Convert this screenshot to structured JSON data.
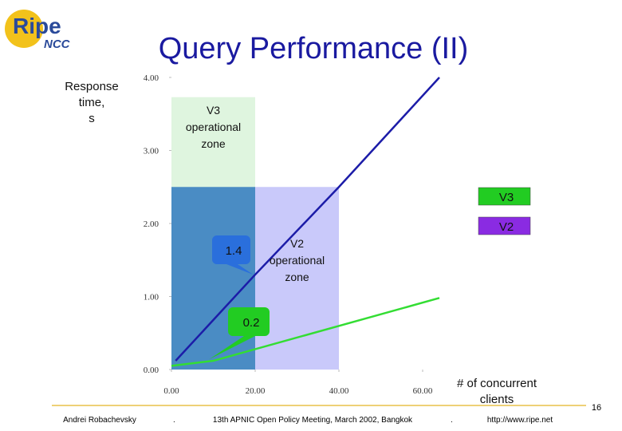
{
  "header": {
    "logo_main": "Ripe",
    "logo_sub": "NCC",
    "title": "Query Performance (II)"
  },
  "chart_data": {
    "type": "line",
    "y_label_lines": [
      "Response",
      "time,",
      "s"
    ],
    "x_label_lines": [
      "# of concurrent",
      "clients"
    ],
    "xlim": [
      0,
      65
    ],
    "ylim": [
      0,
      4.05
    ],
    "xticks": [
      {
        "value": 0,
        "label": "0.00"
      },
      {
        "value": 20,
        "label": "20.00"
      },
      {
        "value": 40,
        "label": "40.00"
      },
      {
        "value": 60,
        "label": "60.00"
      }
    ],
    "yticks": [
      {
        "value": 0,
        "label": "0.00"
      },
      {
        "value": 1,
        "label": "1.00"
      },
      {
        "value": 2,
        "label": "2.00"
      },
      {
        "value": 3,
        "label": "3.00"
      },
      {
        "value": 4,
        "label": "4.00"
      }
    ],
    "zones": [
      {
        "label_lines": [
          "V3",
          "operational",
          "zone"
        ],
        "x": [
          0,
          20
        ],
        "y": [
          0,
          3.73
        ],
        "color": "#dff5df"
      },
      {
        "x": [
          0,
          20
        ],
        "y": [
          0,
          2.5
        ],
        "color": "#4a8cc4"
      },
      {
        "label_lines": [
          "V2",
          "operational",
          "zone"
        ],
        "x": [
          20,
          40
        ],
        "y": [
          0,
          2.5
        ],
        "color": "#c9c9fa"
      }
    ],
    "series": [
      {
        "name": "V3",
        "color": "#1c1ca8",
        "legend_color": "#22cc22",
        "x": [
          1,
          20,
          40,
          64
        ],
        "values": [
          0.12,
          1.3,
          2.5,
          4.0
        ]
      },
      {
        "name": "V2",
        "color": "#33dd33",
        "legend_color": "#8a2be2",
        "x": [
          0,
          10,
          64
        ],
        "values": [
          0.05,
          0.12,
          0.98
        ]
      }
    ],
    "annotations": [
      {
        "text": "1.4",
        "color": "#2a6fdc"
      },
      {
        "text": "0.2",
        "color": "#22cc22"
      }
    ]
  },
  "footer": {
    "author": "Andrei Robachevsky",
    "event": "13th APNIC Open Policy Meeting, March 2002, Bangkok",
    "url": "http://www.ripe.net",
    "page": "16"
  }
}
